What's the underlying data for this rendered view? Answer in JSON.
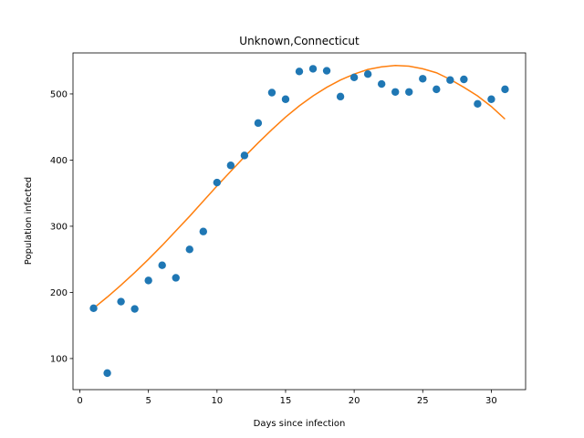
{
  "chart_data": {
    "type": "scatter",
    "title": "Unknown,Connecticut",
    "xlabel": "Days since infection",
    "ylabel": "Population infected",
    "xlim": [
      -0.5,
      32.5
    ],
    "ylim": [
      53,
      562
    ],
    "xticks": [
      0,
      5,
      10,
      15,
      20,
      25,
      30
    ],
    "yticks": [
      100,
      200,
      300,
      400,
      500
    ],
    "grid": false,
    "legend": "none",
    "series": [
      {
        "kind": "scatter",
        "color": "#1f77b4",
        "x": [
          1,
          2,
          3,
          4,
          5,
          6,
          7,
          8,
          9,
          10,
          11,
          12,
          13,
          14,
          15,
          16,
          17,
          18,
          19,
          20,
          21,
          22,
          23,
          24,
          25,
          26,
          27,
          28,
          29,
          30,
          31
        ],
        "y": [
          176,
          78,
          186,
          175,
          218,
          241,
          222,
          265,
          292,
          366,
          392,
          407,
          456,
          502,
          492,
          534,
          538,
          535,
          496,
          525,
          530,
          515,
          503,
          503,
          523,
          507,
          521,
          522,
          485,
          492,
          507
        ]
      },
      {
        "kind": "line",
        "color": "#ff7f0e",
        "x": [
          1,
          2,
          3,
          4,
          5,
          6,
          7,
          8,
          9,
          10,
          11,
          12,
          13,
          14,
          15,
          16,
          17,
          18,
          19,
          20,
          21,
          22,
          23,
          24,
          25,
          26,
          27,
          28,
          29,
          30,
          31
        ],
        "y": [
          176,
          193,
          211,
          230,
          250,
          271,
          293,
          315,
          338,
          361,
          383,
          405,
          426,
          446,
          465,
          482,
          497,
          510,
          521,
          530,
          537,
          541,
          543,
          542,
          538,
          532,
          522,
          510,
          497,
          481,
          462
        ]
      }
    ]
  }
}
